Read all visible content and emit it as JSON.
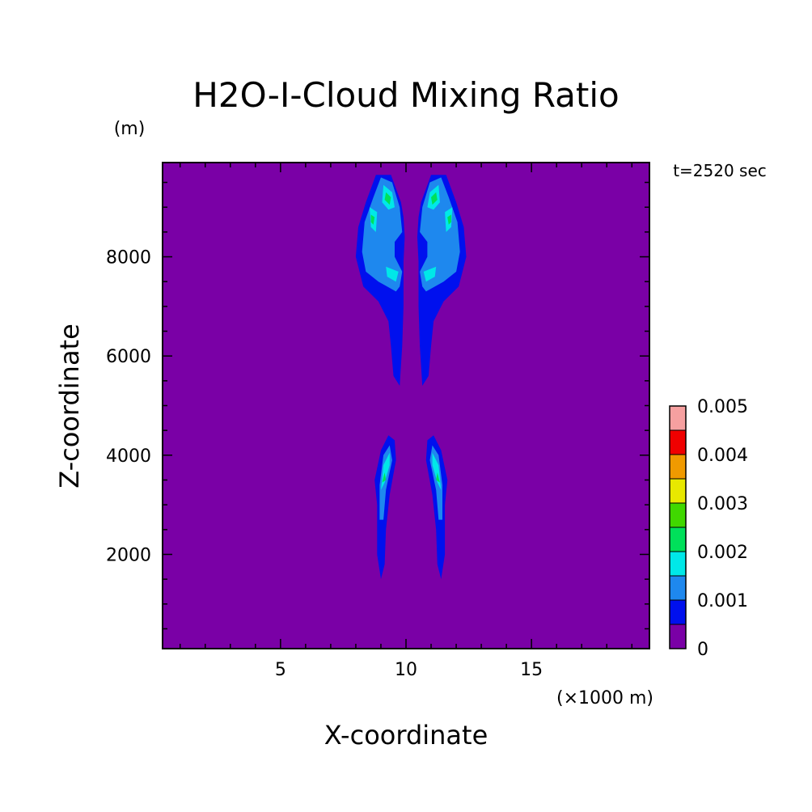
{
  "chart_data": {
    "type": "heatmap",
    "title": "H2O-I-Cloud Mixing Ratio",
    "xlabel": "X-coordinate",
    "ylabel": "Z-coordinate",
    "x_unit": "(×1000 m)",
    "y_unit": "(m)",
    "time_label": "t=2520 sec",
    "xlim": [
      0.3,
      19.7
    ],
    "ylim": [
      100,
      9900
    ],
    "x_ticks": [
      5,
      10,
      15
    ],
    "y_ticks": [
      2000,
      4000,
      6000,
      8000
    ],
    "grid": false,
    "legend": "right",
    "colorbar": {
      "labels": [
        "0",
        "0.001",
        "0.002",
        "0.003",
        "0.004",
        "0.005"
      ],
      "label_values": [
        0,
        0.001,
        0.002,
        0.003,
        0.004,
        0.005
      ],
      "levels": [
        0,
        0.0005,
        0.001,
        0.0015,
        0.002,
        0.0025,
        0.003,
        0.0035,
        0.004,
        0.0045,
        0.005
      ],
      "colors": [
        "#7a00a6",
        "#0010ee",
        "#1e88ee",
        "#00e8e8",
        "#00e05a",
        "#40d800",
        "#e8e800",
        "#f09a00",
        "#f00000",
        "#f6a0a0"
      ]
    },
    "cells": [
      {
        "name": "upper-left-plume",
        "x_center": 9.2,
        "z_range": [
          5400,
          9650
        ],
        "max_value": 0.0027
      },
      {
        "name": "upper-right-plume",
        "x_center": 11.2,
        "z_range": [
          5400,
          9650
        ],
        "max_value": 0.0027
      },
      {
        "name": "lower-left-plume",
        "x_center": 9.1,
        "z_range": [
          1500,
          4400
        ],
        "max_value": 0.0022
      },
      {
        "name": "lower-right-plume",
        "x_center": 11.2,
        "z_range": [
          1500,
          4400
        ],
        "max_value": 0.0022
      }
    ]
  }
}
